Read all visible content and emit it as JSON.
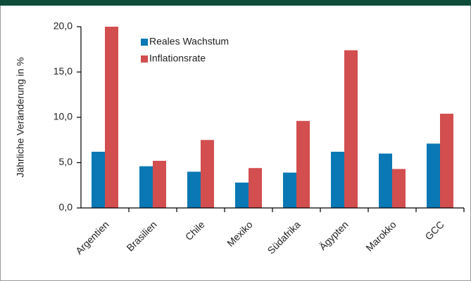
{
  "chart_data": {
    "type": "bar",
    "ylabel": "Jährliche Veränderung in %",
    "categories": [
      "Argentien",
      "Brasilien",
      "Chile",
      "Mexiko",
      "Südafrika",
      "Ägypten",
      "Marokko",
      "GCC"
    ],
    "series": [
      {
        "name": "Reales Wachstum",
        "color": "#0a78b4",
        "values": [
          6.2,
          4.6,
          4.0,
          2.8,
          3.9,
          6.2,
          6.0,
          7.1
        ]
      },
      {
        "name": "Inflationsrate",
        "color": "#d24e4f",
        "values": [
          20.0,
          5.2,
          7.5,
          4.4,
          9.6,
          17.4,
          4.3,
          10.4
        ]
      }
    ],
    "ylim": [
      0,
      20
    ],
    "yticks": [
      {
        "value": 0,
        "label": "0,0"
      },
      {
        "value": 5,
        "label": "5,0"
      },
      {
        "value": 10,
        "label": "10,0"
      },
      {
        "value": 15,
        "label": "15,0"
      },
      {
        "value": 20,
        "label": "20,0"
      }
    ],
    "legend": "top-left"
  }
}
